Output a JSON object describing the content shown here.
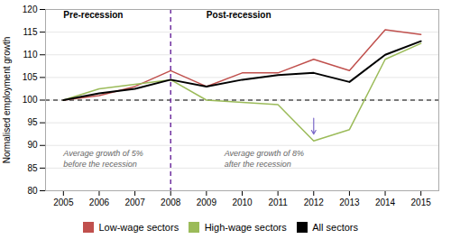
{
  "chart_data": {
    "type": "line",
    "x": [
      2005,
      2006,
      2007,
      2008,
      2009,
      2010,
      2011,
      2012,
      2013,
      2014,
      2015
    ],
    "series": [
      {
        "name": "Low-wage sectors",
        "color": "#C0504D",
        "values": [
          100,
          101,
          103,
          106.5,
          103,
          106,
          106,
          109,
          106.5,
          115.5,
          114.5
        ]
      },
      {
        "name": "High-wage sectors",
        "color": "#9BBB59",
        "values": [
          100,
          102.5,
          103.5,
          104.5,
          100,
          99.5,
          99,
          91,
          93.5,
          109,
          112.5
        ]
      },
      {
        "name": "All sectors",
        "color": "#000000",
        "values": [
          100,
          101.5,
          102.5,
          104.5,
          103,
          104.5,
          105.5,
          106,
          104,
          110,
          113
        ]
      }
    ],
    "xlim": [
      2004.5,
      2015.5
    ],
    "xticks": [
      2005,
      2006,
      2007,
      2008,
      2009,
      2010,
      2011,
      2012,
      2013,
      2014,
      2015
    ],
    "ylim": [
      80,
      120
    ],
    "yticks": [
      80,
      85,
      90,
      95,
      100,
      105,
      110,
      115,
      120
    ],
    "ylabel": "Normalised employment growth",
    "grid": true,
    "legend": "bottom",
    "hlines": [
      {
        "y": 100,
        "color": "black",
        "line_style": "dashed"
      }
    ],
    "vlines": [
      {
        "x": 2008,
        "color": "#7030A0",
        "line_style": "dashed"
      }
    ],
    "section_labels": [
      {
        "text": "Pre-recession",
        "x": 2005,
        "y": 119.5
      },
      {
        "text": "Post-recession",
        "x": 2009,
        "y": 119.5
      }
    ],
    "annotations": [
      {
        "text": "Average growth of 5%",
        "x": 2005,
        "y": 89
      },
      {
        "text": "before the recession",
        "x": 2005,
        "y": 86.5
      },
      {
        "text": "Average growth of 8%",
        "x": 2009.5,
        "y": 89
      },
      {
        "text": "after the recession",
        "x": 2009.5,
        "y": 86.5
      }
    ],
    "arrows": [
      {
        "x": 2012,
        "y_start": 96,
        "y_end": 92.5,
        "color": "#7B68C8"
      }
    ]
  }
}
